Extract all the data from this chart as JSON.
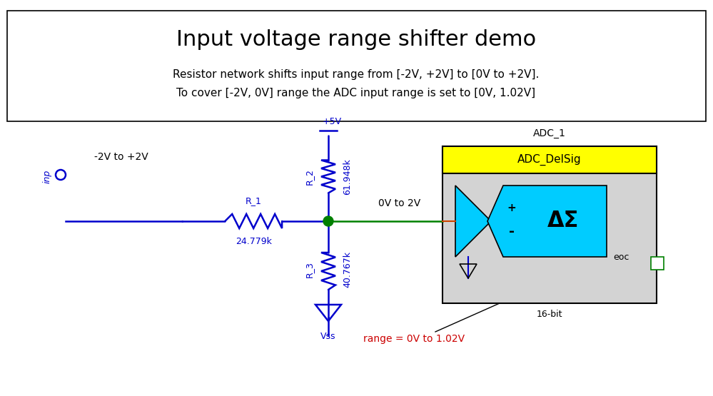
{
  "title": "Input voltage range shifter demo",
  "subtitle_line1": "Resistor network shifts input range from [-2V, +2V] to [0V to +2V].",
  "subtitle_line2": "To cover [-2V, 0V] range the ADC input range is set to [0V, 1.02V]",
  "bg_color": "#ffffff",
  "blue": "#0000cc",
  "green": "#008000",
  "red": "#cc0000",
  "yellow": "#ffff00",
  "cyan": "#00ccff",
  "light_gray": "#d3d3d3",
  "title_fontsize": 22,
  "subtitle_fontsize": 11,
  "r1_label": "R_1",
  "r1_value": "24.779k",
  "r2_label": "R_2",
  "r2_value": "61.948k",
  "r3_label": "R_3",
  "r3_value": "40.767k",
  "range_annotation": "range = 0V to 1.02V"
}
